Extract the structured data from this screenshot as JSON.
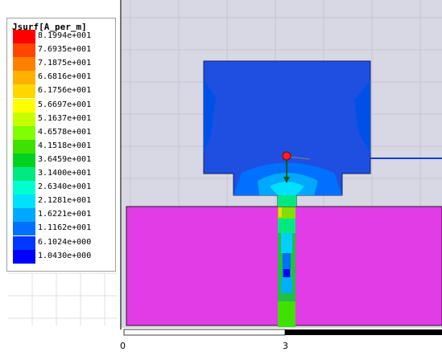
{
  "legend": {
    "title": "Jsurf[A_per_m]",
    "levels": [
      {
        "label": "8.1994e+001",
        "color": "#ff0000"
      },
      {
        "label": "7.6935e+001",
        "color": "#ff4500"
      },
      {
        "label": "7.1875e+001",
        "color": "#ff8000"
      },
      {
        "label": "6.6816e+001",
        "color": "#ffb000"
      },
      {
        "label": "6.1756e+001",
        "color": "#ffd700"
      },
      {
        "label": "5.6697e+001",
        "color": "#ffff00"
      },
      {
        "label": "5.1637e+001",
        "color": "#c8ff00"
      },
      {
        "label": "4.6578e+001",
        "color": "#80ff00"
      },
      {
        "label": "4.1518e+001",
        "color": "#40e000"
      },
      {
        "label": "3.6459e+001",
        "color": "#00d020"
      },
      {
        "label": "3.1400e+001",
        "color": "#00e880"
      },
      {
        "label": "2.6340e+001",
        "color": "#00ffd0"
      },
      {
        "label": "2.1281e+001",
        "color": "#00e0ff"
      },
      {
        "label": "1.6221e+001",
        "color": "#00a8ff"
      },
      {
        "label": "1.1162e+001",
        "color": "#0070ff"
      },
      {
        "label": "6.1024e+000",
        "color": "#0038ff"
      },
      {
        "label": "1.0430e+000",
        "color": "#0000ff"
      }
    ]
  },
  "ruler": {
    "tick_0": "0",
    "tick_3": "3"
  },
  "colors": {
    "background": "#d8d8e4",
    "substrate": "#e23ce6",
    "patch": "#1f4fe0"
  }
}
